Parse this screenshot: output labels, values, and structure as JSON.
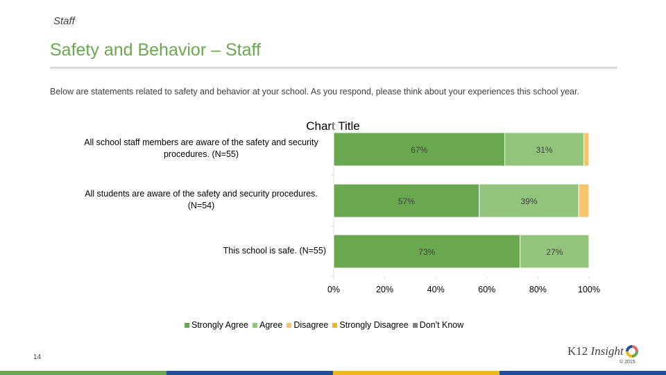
{
  "header": {
    "section": "Staff",
    "title": "Safety and Behavior – Staff",
    "intro": "Below are statements related to safety and behavior at your school. As you respond, please think about your experiences this school year."
  },
  "chart_data": {
    "type": "bar",
    "orientation": "horizontal",
    "stacked": true,
    "title": "Chart Title",
    "categories": [
      "All school staff members are aware of the safety and security procedures. (N=55)",
      "All students are aware of the safety and security procedures. (N=54)",
      "This school is safe. (N=55)"
    ],
    "category_lines": [
      [
        "All school staff members are aware of the safety and security",
        "procedures. (N=55)"
      ],
      [
        "All students are aware of the safety and security procedures.",
        "(N=54)"
      ],
      [
        "This school is safe. (N=55)"
      ]
    ],
    "series": [
      {
        "name": "Strongly Agree",
        "color": "#6aa84f",
        "values": [
          67,
          57,
          73
        ],
        "labels": [
          "67%",
          "57%",
          "73%"
        ]
      },
      {
        "name": "Agree",
        "color": "#93c47d",
        "values": [
          31,
          39,
          27
        ],
        "labels": [
          "31%",
          "39%",
          "27%"
        ]
      },
      {
        "name": "Disagree",
        "color": "#f6c46b",
        "values": [
          2,
          4,
          0
        ],
        "labels": [
          "",
          "",
          ""
        ]
      },
      {
        "name": "Strongly Disagree",
        "color": "#f1b522",
        "values": [
          0,
          0,
          0
        ],
        "labels": [
          "",
          "",
          ""
        ]
      },
      {
        "name": "Don't Know",
        "color": "#7f7f7f",
        "values": [
          0,
          0,
          0
        ],
        "labels": [
          "",
          "",
          ""
        ]
      }
    ],
    "xlim": [
      0,
      100
    ],
    "xticks": [
      "0%",
      "20%",
      "40%",
      "60%",
      "80%",
      "100%"
    ],
    "legend_position": "bottom",
    "grid": false
  },
  "footer": {
    "page_number": "14",
    "logo_k12": "K12",
    "logo_insight": "Insight",
    "copyright": "© 2015",
    "bar_colors": [
      "#6aa84f",
      "#1f4e9a",
      "#f1b522",
      "#1f4e9a"
    ]
  }
}
